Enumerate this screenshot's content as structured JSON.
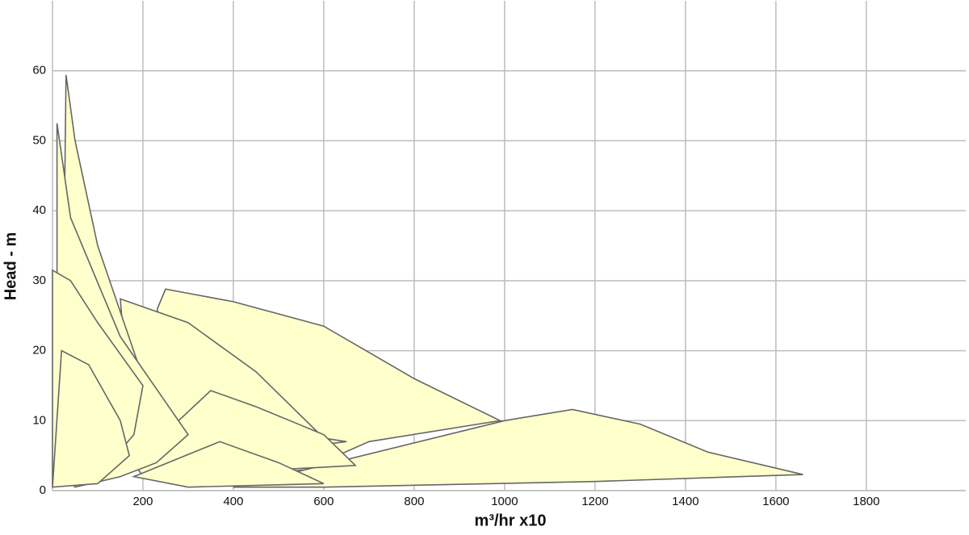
{
  "chart_data": {
    "type": "polygon",
    "xlabel": "m³/hr x10",
    "ylabel": "Head - m",
    "xlim": [
      0,
      2020
    ],
    "ylim": [
      0,
      70
    ],
    "xticks": [
      200,
      400,
      600,
      800,
      1000,
      1200,
      1400,
      1600,
      1800
    ],
    "yticks": [
      0,
      10,
      20,
      30,
      40,
      50,
      60
    ],
    "grid": true,
    "fill": "#ffffcc",
    "series": [
      {
        "color": "#666666",
        "x": [
          560,
          1000,
          1150,
          1300,
          1450,
          1660,
          1200,
          600,
          400
        ],
        "values": [
          3,
          10,
          11.6,
          9.5,
          5.5,
          2.3,
          1.3,
          0.5,
          0.5
        ]
      },
      {
        "color": "#666666",
        "x": [
          232,
          250,
          400,
          600,
          800,
          990,
          700,
          560,
          350,
          250
        ],
        "values": [
          26,
          28.8,
          27,
          23.5,
          16,
          10,
          7,
          3,
          1.5,
          2
        ]
      },
      {
        "color": "#666666",
        "x": [
          150,
          300,
          450,
          600,
          650,
          400,
          180
        ],
        "values": [
          27.4,
          24,
          17,
          7.5,
          7,
          5,
          3
        ]
      },
      {
        "color": "#666666",
        "x": [
          180,
          350,
          450,
          600,
          670,
          500,
          200
        ],
        "values": [
          4,
          14.3,
          12,
          8,
          3.6,
          3,
          2
        ]
      },
      {
        "color": "#666666",
        "x": [
          180,
          370,
          500,
          600,
          300
        ],
        "values": [
          2,
          7,
          4,
          1,
          0.5
        ]
      },
      {
        "color": "#666666",
        "x": [
          20,
          30,
          50,
          100,
          190,
          180,
          100
        ],
        "values": [
          5,
          59.4,
          50,
          35,
          18,
          12,
          2
        ]
      },
      {
        "color": "#666666",
        "x": [
          10,
          10,
          40,
          150,
          300,
          230,
          150,
          50
        ],
        "values": [
          3,
          52.5,
          39,
          22,
          8,
          4,
          2,
          0.5
        ]
      },
      {
        "color": "#666666",
        "x": [
          0,
          0,
          40,
          100,
          200,
          180,
          100
        ],
        "values": [
          1,
          31.5,
          30,
          24,
          15,
          8,
          2
        ]
      },
      {
        "color": "#666666",
        "x": [
          0,
          20,
          80,
          150,
          170,
          100
        ],
        "values": [
          0.5,
          20,
          18,
          10,
          5,
          1
        ]
      }
    ]
  }
}
